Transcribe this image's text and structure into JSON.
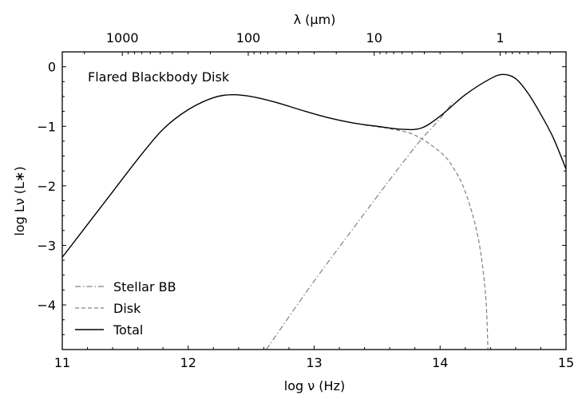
{
  "chart_data": {
    "type": "line",
    "annotation": "Flared Blackbody Disk",
    "xlabel": "log ν (Hz)",
    "ylabel": "log Lν (L∗)",
    "x2label": "λ (μm)",
    "xlim": [
      11,
      15
    ],
    "ylim": [
      -4.75,
      0.25
    ],
    "x_ticks": [
      11,
      12,
      13,
      14,
      15
    ],
    "x_tick_labels": [
      "11",
      "12",
      "13",
      "14",
      "15"
    ],
    "y_ticks": [
      0,
      -1,
      -2,
      -3,
      -4
    ],
    "y_tick_labels": [
      "0",
      "−1",
      "−2",
      "−3",
      "−4"
    ],
    "x2_ticks_um": [
      1000,
      100,
      10,
      1
    ],
    "x2_tick_labels": [
      "1000",
      "100",
      "10",
      "1"
    ],
    "legend_position": "lower-left",
    "series": [
      {
        "name": "Stellar BB",
        "color": "#808080",
        "linestyle": "dashdot",
        "points": [
          [
            12.62,
            -4.75
          ],
          [
            13.0,
            -3.6
          ],
          [
            13.5,
            -2.18
          ],
          [
            13.8,
            -1.35
          ],
          [
            14.0,
            -0.87
          ],
          [
            14.1,
            -0.6
          ]
        ]
      },
      {
        "name": "Disk",
        "color": "#808080",
        "linestyle": "dashed",
        "points": [
          [
            13.4,
            -0.98
          ],
          [
            13.6,
            -1.04
          ],
          [
            13.8,
            -1.15
          ],
          [
            14.0,
            -1.43
          ],
          [
            14.1,
            -1.68
          ],
          [
            14.2,
            -2.1
          ],
          [
            14.3,
            -2.85
          ],
          [
            14.36,
            -3.8
          ],
          [
            14.38,
            -4.75
          ]
        ]
      },
      {
        "name": "Total",
        "color": "#000000",
        "linestyle": "solid",
        "points": [
          [
            11.0,
            -3.2
          ],
          [
            11.2,
            -2.65
          ],
          [
            11.4,
            -2.1
          ],
          [
            11.6,
            -1.55
          ],
          [
            11.8,
            -1.05
          ],
          [
            12.0,
            -0.72
          ],
          [
            12.2,
            -0.52
          ],
          [
            12.35,
            -0.47
          ],
          [
            12.5,
            -0.5
          ],
          [
            12.7,
            -0.6
          ],
          [
            12.9,
            -0.73
          ],
          [
            13.1,
            -0.85
          ],
          [
            13.3,
            -0.94
          ],
          [
            13.5,
            -1.0
          ],
          [
            13.7,
            -1.05
          ],
          [
            13.85,
            -1.03
          ],
          [
            14.0,
            -0.83
          ],
          [
            14.2,
            -0.47
          ],
          [
            14.4,
            -0.2
          ],
          [
            14.5,
            -0.13
          ],
          [
            14.6,
            -0.2
          ],
          [
            14.7,
            -0.45
          ],
          [
            14.8,
            -0.8
          ],
          [
            14.9,
            -1.2
          ],
          [
            15.0,
            -1.72
          ]
        ]
      }
    ]
  }
}
